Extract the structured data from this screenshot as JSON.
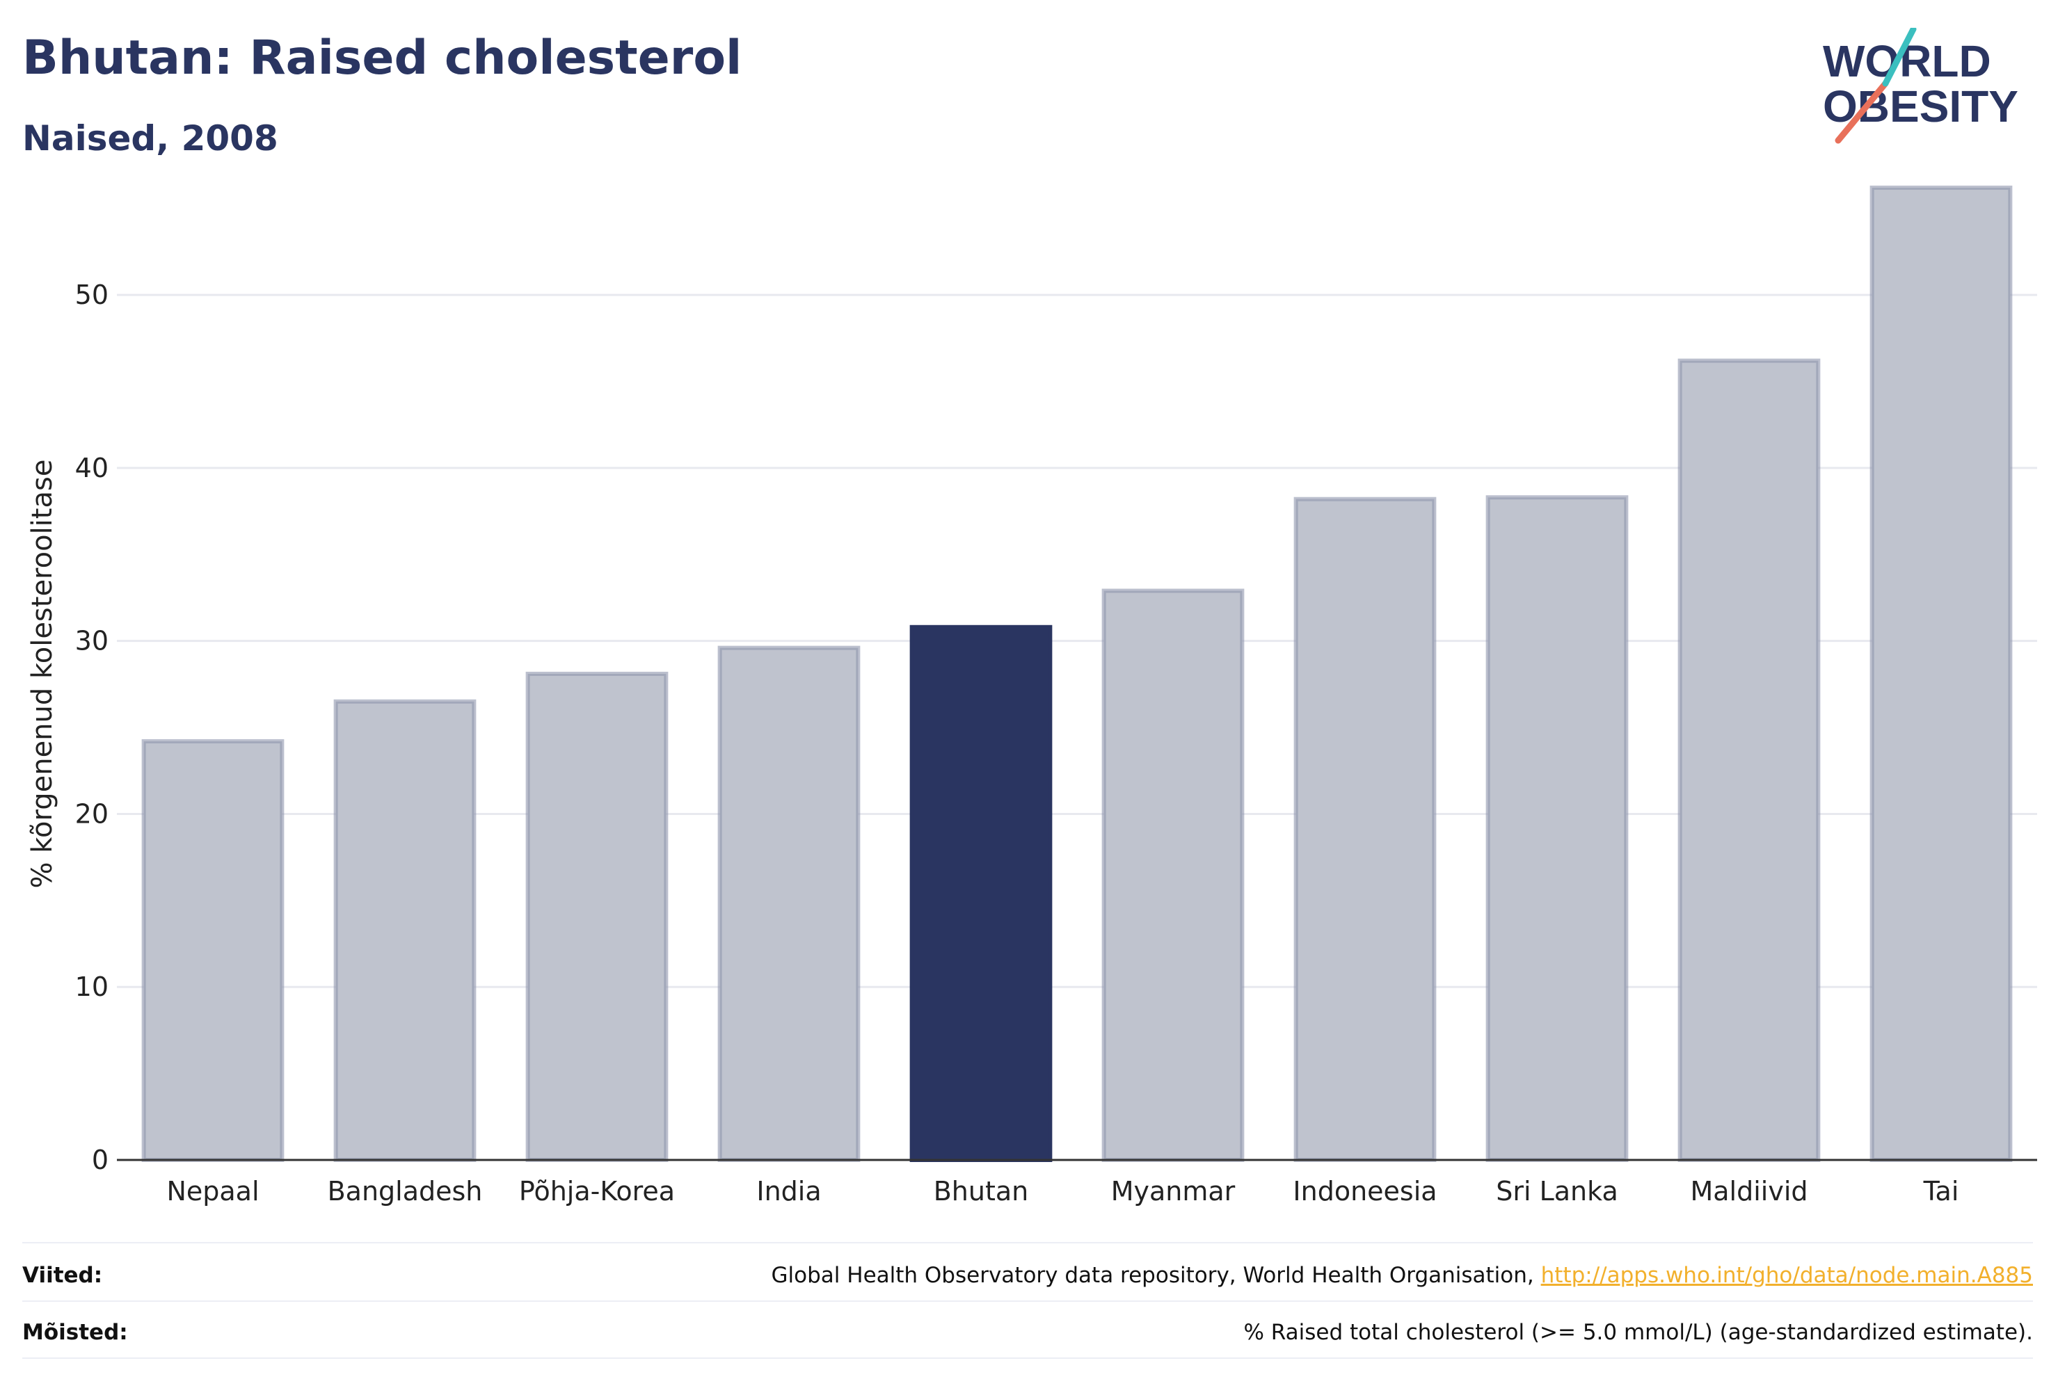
{
  "header": {
    "title": "Bhutan: Raised cholesterol",
    "subtitle": "Naised, 2008"
  },
  "logo": {
    "line1": "WORLD",
    "line2": "OBESITY"
  },
  "colors": {
    "bar_default": "#bfc3ce",
    "bar_stroke": "#8f96ad",
    "bar_highlight": "#2a3561",
    "text": "#2a3561",
    "grid": "#e8e9ef",
    "link": "#f2b02c",
    "logo_teal": "#3bbfbf",
    "logo_coral": "#e8705a"
  },
  "chart_data": {
    "type": "bar",
    "title": "Bhutan: Raised cholesterol",
    "subtitle": "Naised, 2008",
    "ylabel": "% kõrgenenud kolesteroolitase",
    "xlabel": "",
    "ylim": [
      0,
      57
    ],
    "yticks": [
      0,
      10,
      20,
      30,
      40,
      50
    ],
    "grid": true,
    "categories": [
      "Nepaal",
      "Bangladesh",
      "Põhja-Korea",
      "India",
      "Bhutan",
      "Myanmar",
      "Indoneesia",
      "Sri Lanka",
      "Maldiivid",
      "Tai"
    ],
    "values": [
      24.2,
      26.5,
      28.1,
      29.6,
      30.8,
      32.9,
      38.2,
      38.3,
      46.2,
      56.2
    ],
    "highlight": "Bhutan"
  },
  "footer": {
    "references_label": "Viited:",
    "references_text": "Global Health Observatory data repository, World Health Organisation,",
    "references_link": "http://apps.who.int/gho/data/node.main.A885",
    "definitions_label": "Mõisted:",
    "definitions_text": "% Raised total cholesterol (>= 5.0 mmol/L) (age-standardized estimate)."
  }
}
